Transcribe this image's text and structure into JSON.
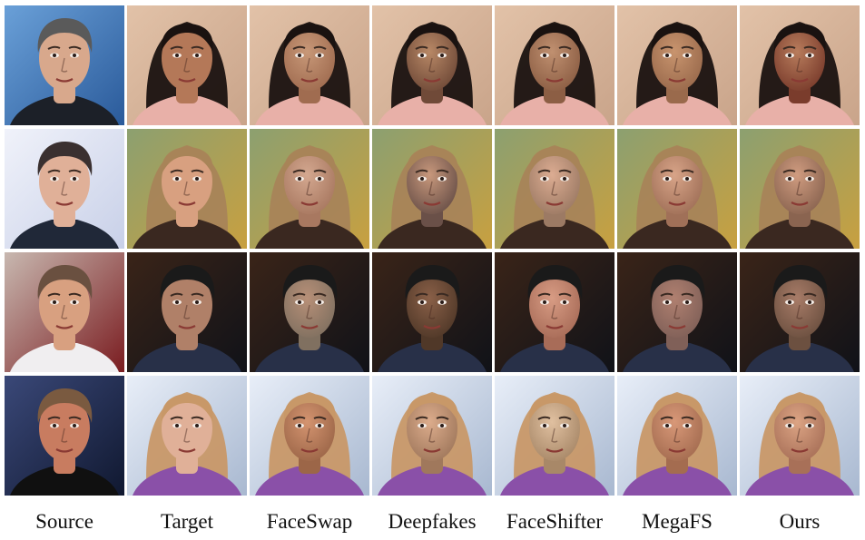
{
  "columns": [
    {
      "label": "Source"
    },
    {
      "label": "Target"
    },
    {
      "label": "FaceSwap"
    },
    {
      "label": "Deepfakes"
    },
    {
      "label": "FaceShifter"
    },
    {
      "label": "MegaFS"
    },
    {
      "label": "Ours"
    }
  ],
  "rows": [
    {
      "source": {
        "bg": "#2a5a9a",
        "bg2": "#6aa0d8",
        "skin": "#d8a88c",
        "hair": "#5a5a5a",
        "cloth": "#1c2028",
        "icon": "male-presenter-icon"
      },
      "target": {
        "bg": "#c9a48a",
        "bg2": "#e2c2a8",
        "skin": "#b47858",
        "hair": "#1a1210",
        "cloth": "#e8b0a8",
        "icon": "female-face-icon"
      },
      "results": [
        {
          "skin": "#c89878",
          "tone": "#a06c50"
        },
        {
          "skin": "#b88866",
          "tone": "#704a38"
        },
        {
          "skin": "#c09070",
          "tone": "#8c5e44"
        },
        {
          "skin": "#c8946e",
          "tone": "#9a6a4c"
        },
        {
          "skin": "#b87c5c",
          "tone": "#7a3c2c"
        }
      ]
    },
    {
      "source": {
        "bg": "#c8d0e8",
        "bg2": "#f0f2fa",
        "skin": "#e0b098",
        "hair": "#3a3030",
        "cloth": "#202838",
        "icon": "male-presenter-icon"
      },
      "target": {
        "bg": "#c8a040",
        "bg2": "#8ca070",
        "skin": "#d8a080",
        "hair": "#a88458",
        "cloth": "#3a2820",
        "icon": "female-long-hair-icon"
      },
      "results": [
        {
          "skin": "#d4a890",
          "tone": "#a87860"
        },
        {
          "skin": "#c8987c",
          "tone": "#6a5048"
        },
        {
          "skin": "#dcac92",
          "tone": "#9c7a64"
        },
        {
          "skin": "#d8a488",
          "tone": "#a07058"
        },
        {
          "skin": "#d09c80",
          "tone": "#8a6450"
        }
      ]
    },
    {
      "source": {
        "bg": "#7a1c20",
        "bg2": "#c8b8b0",
        "skin": "#d8a080",
        "hair": "#6a5040",
        "cloth": "#f0eef0",
        "icon": "male-bearded-icon"
      },
      "target": {
        "bg": "#101218",
        "bg2": "#3a2418",
        "skin": "#b08068",
        "hair": "#1a1a1a",
        "cloth": "#283048",
        "icon": "male-night-icon"
      },
      "results": [
        {
          "skin": "#b89078",
          "tone": "#807060"
        },
        {
          "skin": "#8a6048",
          "tone": "#503828"
        },
        {
          "skin": "#d89c84",
          "tone": "#a86c58"
        },
        {
          "skin": "#b08070",
          "tone": "#806058"
        },
        {
          "skin": "#a87c68",
          "tone": "#6c5040"
        }
      ]
    },
    {
      "source": {
        "bg": "#101830",
        "bg2": "#3a4878",
        "skin": "#c87c60",
        "hair": "#7a5a40",
        "cloth": "#101010",
        "icon": "male-older-icon"
      },
      "target": {
        "bg": "#a8b8d0",
        "bg2": "#e8eef8",
        "skin": "#e0b098",
        "hair": "#c89868",
        "cloth": "#8a50a8",
        "icon": "female-blonde-icon"
      },
      "results": [
        {
          "skin": "#d49470",
          "tone": "#9c6648"
        },
        {
          "skin": "#dcac8c",
          "tone": "#a0785c"
        },
        {
          "skin": "#e0c0a0",
          "tone": "#a88868"
        },
        {
          "skin": "#d89878",
          "tone": "#a46c50"
        },
        {
          "skin": "#dca484",
          "tone": "#a87058"
        }
      ]
    }
  ]
}
